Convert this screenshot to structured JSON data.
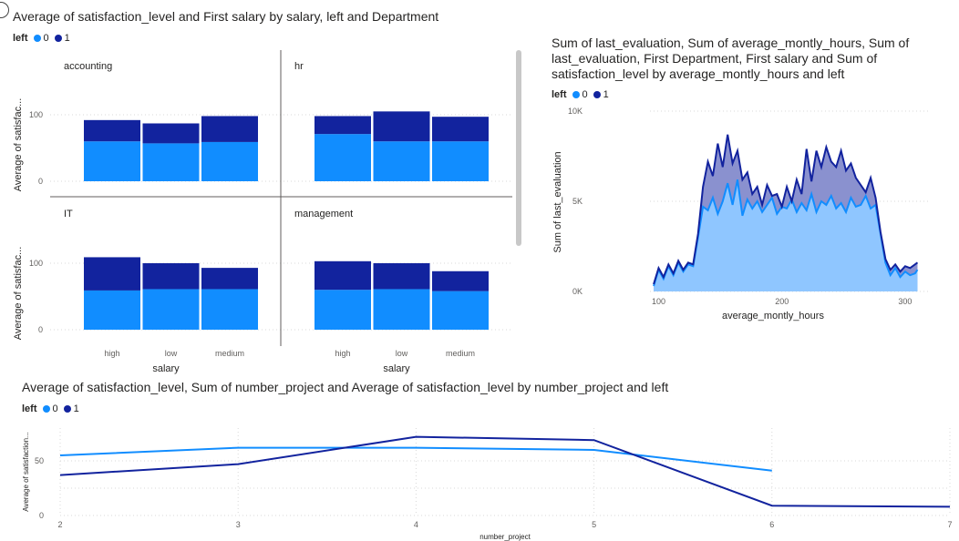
{
  "colors": {
    "left0": "#118dff",
    "left1": "#12239e",
    "area0": "#8fc6ff",
    "area1": "#8a91cf",
    "grid": "#d9d9d9",
    "axis_text": "#605e5c"
  },
  "icons": {
    "top_left": "circle-icon"
  },
  "visual1": {
    "title": "Average of satisfaction_level and First salary by salary, left and Department",
    "legend_title": "left",
    "legend_items": [
      "0",
      "1"
    ]
  },
  "visual2": {
    "title_lines": [
      "Sum of last_evaluation, Sum of average_montly_hours, Sum of",
      "last_evaluation, First Department, First salary and Sum of",
      "satisfaction_level by average_montly_hours and left"
    ],
    "legend_title": "left",
    "legend_items": [
      "0",
      "1"
    ]
  },
  "visual3": {
    "title": "Average of satisfaction_level, Sum of number_project and Average of satisfaction_level by number_project and left",
    "legend_title": "left",
    "legend_items": [
      "0",
      "1"
    ]
  },
  "chart_data": [
    {
      "type": "bar",
      "stacked": true,
      "title": "Average of satisfaction_level and First salary by salary, left and Department",
      "xlabel": "salary",
      "ylabel": "Average of satisfac...",
      "yticks": [
        "0",
        "100"
      ],
      "ylim": [
        0,
        120
      ],
      "categories": [
        "high",
        "low",
        "medium"
      ],
      "legend": {
        "title": "left",
        "entries": [
          "0",
          "1"
        ],
        "position": "top-left"
      },
      "panels": [
        {
          "name": "accounting",
          "series": [
            {
              "name": "0",
              "values": [
                60,
                57,
                59
              ]
            },
            {
              "name": "1",
              "values": [
                32,
                30,
                39
              ]
            }
          ]
        },
        {
          "name": "hr",
          "series": [
            {
              "name": "0",
              "values": [
                71,
                60,
                60
              ]
            },
            {
              "name": "1",
              "values": [
                27,
                45,
                37
              ]
            }
          ]
        },
        {
          "name": "IT",
          "series": [
            {
              "name": "0",
              "values": [
                59,
                61,
                61
              ]
            },
            {
              "name": "1",
              "values": [
                50,
                39,
                32
              ]
            }
          ]
        },
        {
          "name": "management",
          "series": [
            {
              "name": "0",
              "values": [
                60,
                61,
                58
              ]
            },
            {
              "name": "1",
              "values": [
                43,
                39,
                30
              ]
            }
          ]
        }
      ]
    },
    {
      "type": "area",
      "title": "Sum of last_evaluation, Sum of average_montly_hours, Sum of last_evaluation, First Department, First salary and Sum of satisfaction_level by average_montly_hours and left",
      "xlabel": "average_montly_hours",
      "ylabel": "Sum of last_evaluation",
      "xticks": [
        "100",
        "200",
        "300"
      ],
      "yticks": [
        "0K",
        "5K",
        "10K"
      ],
      "xlim": [
        93,
        320
      ],
      "ylim": [
        0,
        10000
      ],
      "legend": {
        "title": "left",
        "entries": [
          "0",
          "1"
        ],
        "position": "top-left"
      },
      "note": "values approximate; left=1 curve plotted on top",
      "series": [
        {
          "name": "0",
          "x": [
            96,
            100,
            104,
            108,
            112,
            116,
            120,
            124,
            128,
            132,
            136,
            140,
            144,
            148,
            152,
            156,
            160,
            164,
            168,
            172,
            176,
            180,
            184,
            188,
            192,
            196,
            200,
            204,
            208,
            212,
            216,
            220,
            224,
            228,
            232,
            236,
            240,
            244,
            248,
            252,
            256,
            260,
            264,
            268,
            272,
            276,
            280,
            284,
            288,
            292,
            296,
            300,
            304,
            308,
            310
          ],
          "y": [
            300,
            1200,
            700,
            1400,
            900,
            1600,
            1100,
            1500,
            1400,
            3000,
            4700,
            4500,
            5200,
            4300,
            5000,
            6000,
            4800,
            6200,
            4200,
            5100,
            4600,
            5000,
            4400,
            4800,
            5200,
            4300,
            4700,
            4600,
            5100,
            4400,
            4900,
            4500,
            5400,
            4400,
            5000,
            4800,
            5300,
            4600,
            4900,
            4400,
            5200,
            4700,
            4800,
            5300,
            4600,
            4800,
            3200,
            1600,
            900,
            1300,
            800,
            1100,
            900,
            1000,
            1200
          ]
        },
        {
          "name": "1",
          "x": [
            96,
            100,
            104,
            108,
            112,
            116,
            120,
            124,
            128,
            132,
            136,
            140,
            144,
            148,
            152,
            156,
            160,
            164,
            168,
            172,
            176,
            180,
            184,
            188,
            192,
            196,
            200,
            204,
            208,
            212,
            216,
            220,
            224,
            228,
            232,
            236,
            240,
            244,
            248,
            252,
            256,
            260,
            264,
            268,
            272,
            276,
            280,
            284,
            288,
            292,
            296,
            300,
            304,
            308,
            310
          ],
          "y": [
            400,
            1300,
            800,
            1500,
            1000,
            1700,
            1200,
            1600,
            1500,
            3200,
            5800,
            7200,
            6400,
            8200,
            6900,
            8700,
            7100,
            7800,
            6200,
            6600,
            5400,
            5800,
            4800,
            5900,
            5300,
            5400,
            4700,
            5800,
            5000,
            6200,
            5400,
            7900,
            6100,
            7800,
            6900,
            8000,
            7200,
            6900,
            7800,
            6700,
            7100,
            6300,
            5900,
            5500,
            6300,
            5200,
            3300,
            1800,
            1200,
            1500,
            1100,
            1400,
            1300,
            1500,
            1600
          ]
        }
      ]
    },
    {
      "type": "line",
      "title": "Average of satisfaction_level, Sum of number_project and Average of satisfaction_level by number_project and left",
      "xlabel": "number_project",
      "ylabel": "Average of satisfaction...",
      "yticks": [
        "0",
        "50"
      ],
      "ylim": [
        0,
        80
      ],
      "legend": {
        "title": "left",
        "entries": [
          "0",
          "1"
        ],
        "position": "top-left"
      },
      "x": [
        2,
        3,
        4,
        5,
        6,
        7
      ],
      "series": [
        {
          "name": "0",
          "values": [
            55,
            62,
            62,
            60,
            41,
            null
          ]
        },
        {
          "name": "1",
          "values": [
            37,
            47,
            72,
            69,
            9,
            8
          ]
        }
      ]
    }
  ]
}
